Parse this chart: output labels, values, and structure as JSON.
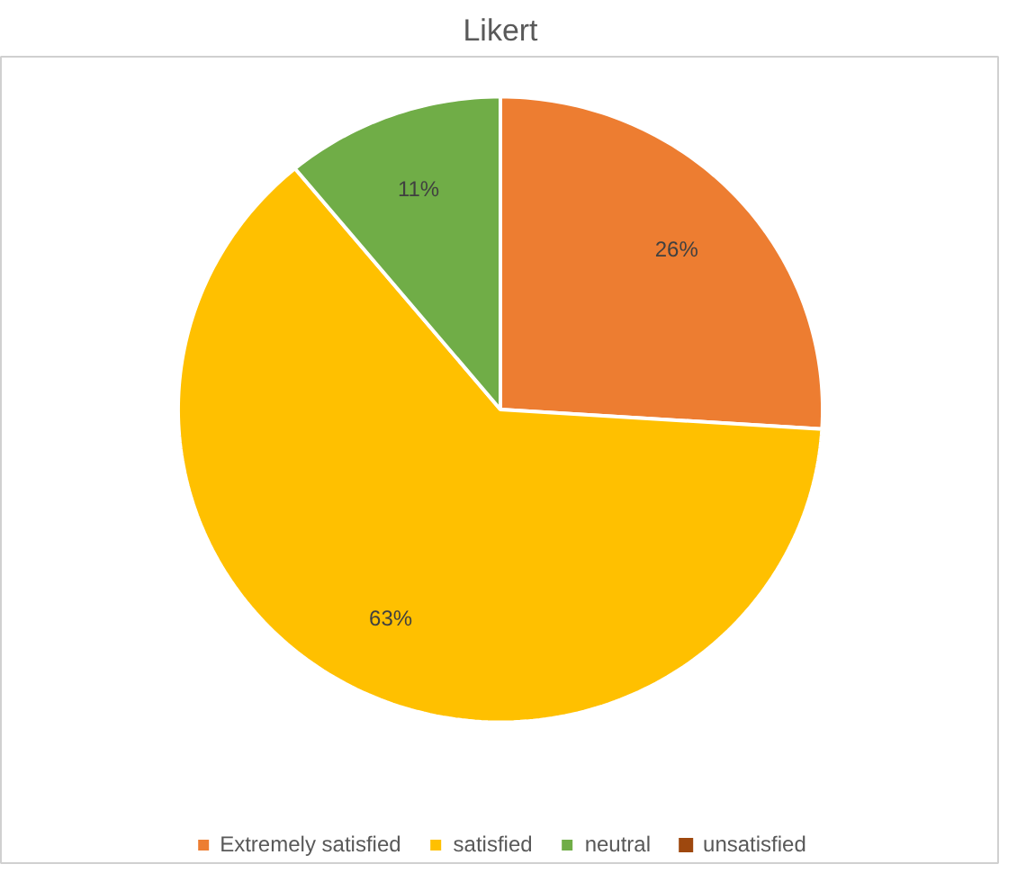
{
  "chart_data": {
    "type": "pie",
    "title": "Likert",
    "categories": [
      "Extremely satisfied",
      "satisfied",
      "neutral",
      "unsatisfied"
    ],
    "values": [
      26,
      63,
      11,
      0
    ],
    "colors": [
      "#ed7d31",
      "#ffc000",
      "#70ad47",
      "#9e480e"
    ],
    "value_labels": [
      "26%",
      "63%",
      "11%",
      null
    ],
    "legend": "bottom"
  }
}
